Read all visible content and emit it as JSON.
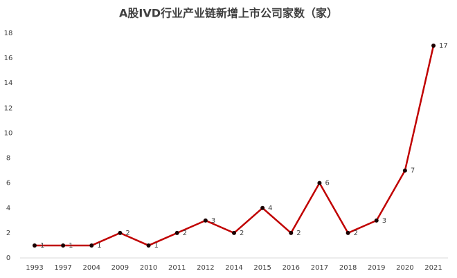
{
  "chart_data": {
    "type": "line",
    "title": "A股IVD行业产业链新增上市公司家数（家）",
    "categories": [
      "1993",
      "1997",
      "2004",
      "2009",
      "2010",
      "2011",
      "2012",
      "2014",
      "2015",
      "2016",
      "2017",
      "2018",
      "2019",
      "2020",
      "2021"
    ],
    "values": [
      1,
      1,
      1,
      2,
      1,
      2,
      3,
      2,
      4,
      2,
      6,
      2,
      3,
      7,
      17
    ],
    "color": "#c00000",
    "marker_color": "#1a0000",
    "ylim": [
      0,
      18
    ],
    "yticks": [
      0,
      2,
      4,
      6,
      8,
      10,
      12,
      14,
      16,
      18
    ],
    "grid": false,
    "data_labels": true
  }
}
